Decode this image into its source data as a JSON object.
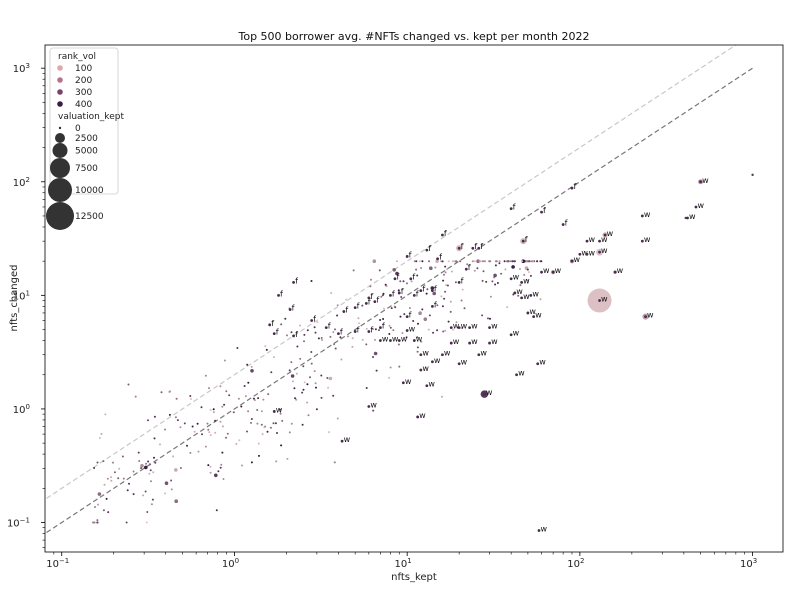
{
  "chart_data": {
    "type": "scatter",
    "title": "Top 500 borrower avg. #NFTs changed vs. kept per month 2022",
    "xlabel": "nfts_kept",
    "ylabel": "nfts_changed",
    "xscale": "log",
    "yscale": "log",
    "xlim": [
      0.08,
      1500
    ],
    "ylim": [
      0.055,
      1600
    ],
    "x_ticks": [
      {
        "value": 0.1,
        "base": "10",
        "exp": "−1"
      },
      {
        "value": 1,
        "base": "10",
        "exp": "0"
      },
      {
        "value": 10,
        "base": "10",
        "exp": "1"
      },
      {
        "value": 100,
        "base": "10",
        "exp": "2"
      },
      {
        "value": 1000,
        "base": "10",
        "exp": "3"
      }
    ],
    "y_ticks": [
      {
        "value": 0.1,
        "base": "10",
        "exp": "−1"
      },
      {
        "value": 1,
        "base": "10",
        "exp": "0"
      },
      {
        "value": 10,
        "base": "10",
        "exp": "1"
      },
      {
        "value": 100,
        "base": "10",
        "exp": "2"
      },
      {
        "value": 1000,
        "base": "10",
        "exp": "3"
      }
    ],
    "grid": false,
    "legend_position": "top-left",
    "legend": {
      "hue_title": "rank_vol",
      "hue_entries": [
        {
          "label": "100",
          "color": "#dca7ae"
        },
        {
          "label": "200",
          "color": "#b9728e"
        },
        {
          "label": "300",
          "color": "#7c3f6e"
        },
        {
          "label": "400",
          "color": "#3a1c47"
        }
      ],
      "size_title": "valuation_kept",
      "size_entries": [
        {
          "label": "0",
          "r": 1.2
        },
        {
          "label": "2500",
          "r": 5
        },
        {
          "label": "5000",
          "r": 7.5
        },
        {
          "label": "7500",
          "r": 10
        },
        {
          "label": "10000",
          "r": 12
        },
        {
          "label": "12500",
          "r": 14
        }
      ]
    },
    "reference_lines": [
      {
        "description": "y = x",
        "color": "#777777",
        "points": [
          [
            0.04,
            0.04
          ],
          [
            1000,
            1000
          ]
        ],
        "style": "dashed"
      },
      {
        "description": "y = 2x",
        "color": "#c8c8c8",
        "points": [
          [
            0.04,
            0.08
          ],
          [
            1000,
            2000
          ]
        ],
        "style": "dashed"
      }
    ],
    "labeled_points": [
      {
        "x": 2.2,
        "y": 13,
        "label": "f"
      },
      {
        "x": 1.8,
        "y": 10,
        "label": "f"
      },
      {
        "x": 2.1,
        "y": 7.5,
        "label": "f"
      },
      {
        "x": 1.6,
        "y": 5.5,
        "label": "f"
      },
      {
        "x": 1.7,
        "y": 4.6,
        "label": "f"
      },
      {
        "x": 2.2,
        "y": 4.4,
        "label": "f"
      },
      {
        "x": 2.8,
        "y": 6,
        "label": "f"
      },
      {
        "x": 3.4,
        "y": 5.2,
        "label": "f"
      },
      {
        "x": 4.3,
        "y": 7.2,
        "label": "f"
      },
      {
        "x": 5,
        "y": 7.8,
        "label": "f"
      },
      {
        "x": 5.8,
        "y": 8.5,
        "label": "f"
      },
      {
        "x": 6.5,
        "y": 8.8,
        "label": "f"
      },
      {
        "x": 8,
        "y": 10,
        "label": "f"
      },
      {
        "x": 9,
        "y": 10.5,
        "label": "f"
      },
      {
        "x": 8.5,
        "y": 14,
        "label": "f"
      },
      {
        "x": 10.5,
        "y": 14,
        "label": "f"
      },
      {
        "x": 11,
        "y": 10,
        "label": "f"
      },
      {
        "x": 12,
        "y": 11,
        "label": "f"
      },
      {
        "x": 10,
        "y": 22,
        "label": "f"
      },
      {
        "x": 13,
        "y": 25,
        "label": "f"
      },
      {
        "x": 16,
        "y": 34,
        "label": "f"
      },
      {
        "x": 15,
        "y": 21,
        "label": "f"
      },
      {
        "x": 20,
        "y": 26,
        "label": "f"
      },
      {
        "x": 24,
        "y": 26,
        "label": "f"
      },
      {
        "x": 22,
        "y": 17,
        "label": "f"
      },
      {
        "x": 20,
        "y": 13,
        "label": "f"
      },
      {
        "x": 14,
        "y": 8,
        "label": "f"
      },
      {
        "x": 14,
        "y": 11,
        "label": "f"
      },
      {
        "x": 10,
        "y": 6.5,
        "label": "f"
      },
      {
        "x": 7,
        "y": 5.2,
        "label": "f"
      },
      {
        "x": 6,
        "y": 4.8,
        "label": "f"
      },
      {
        "x": 5,
        "y": 4.8,
        "label": "f"
      },
      {
        "x": 4,
        "y": 4.6,
        "label": "f"
      },
      {
        "x": 40,
        "y": 58,
        "label": "f"
      },
      {
        "x": 60,
        "y": 54,
        "label": "f"
      },
      {
        "x": 80,
        "y": 42,
        "label": "f"
      },
      {
        "x": 90,
        "y": 88,
        "label": "f"
      },
      {
        "x": 47,
        "y": 30,
        "label": "f"
      },
      {
        "x": 26,
        "y": 26,
        "label": "f"
      },
      {
        "x": 6,
        "y": 9.5,
        "label": "f"
      },
      {
        "x": 500,
        "y": 100,
        "label": "w"
      },
      {
        "x": 470,
        "y": 60,
        "label": "w"
      },
      {
        "x": 420,
        "y": 48,
        "label": "w"
      },
      {
        "x": 230,
        "y": 50,
        "label": "w"
      },
      {
        "x": 230,
        "y": 30,
        "label": "w"
      },
      {
        "x": 140,
        "y": 34,
        "label": "w"
      },
      {
        "x": 130,
        "y": 30,
        "label": "w"
      },
      {
        "x": 110,
        "y": 30,
        "label": "w"
      },
      {
        "x": 130,
        "y": 24,
        "label": "w"
      },
      {
        "x": 100,
        "y": 23,
        "label": "w"
      },
      {
        "x": 110,
        "y": 23,
        "label": "w"
      },
      {
        "x": 90,
        "y": 20,
        "label": "w"
      },
      {
        "x": 70,
        "y": 16,
        "label": "w"
      },
      {
        "x": 60,
        "y": 16,
        "label": "w"
      },
      {
        "x": 160,
        "y": 16,
        "label": "w"
      },
      {
        "x": 130,
        "y": 9,
        "label": "w"
      },
      {
        "x": 240,
        "y": 6.5,
        "label": "w"
      },
      {
        "x": 40,
        "y": 14,
        "label": "w"
      },
      {
        "x": 46,
        "y": 13,
        "label": "w"
      },
      {
        "x": 42,
        "y": 10.5,
        "label": "w"
      },
      {
        "x": 46,
        "y": 9.5,
        "label": "w"
      },
      {
        "x": 52,
        "y": 10,
        "label": "w"
      },
      {
        "x": 50,
        "y": 7,
        "label": "w"
      },
      {
        "x": 54,
        "y": 6.5,
        "label": "w"
      },
      {
        "x": 30,
        "y": 5.2,
        "label": "w"
      },
      {
        "x": 23,
        "y": 5.2,
        "label": "w"
      },
      {
        "x": 20,
        "y": 5.2,
        "label": "w"
      },
      {
        "x": 18,
        "y": 5.2,
        "label": "w"
      },
      {
        "x": 40,
        "y": 4.5,
        "label": "w"
      },
      {
        "x": 23,
        "y": 3.8,
        "label": "w"
      },
      {
        "x": 18,
        "y": 3.8,
        "label": "w"
      },
      {
        "x": 30,
        "y": 3.8,
        "label": "w"
      },
      {
        "x": 26,
        "y": 3,
        "label": "w"
      },
      {
        "x": 16,
        "y": 3,
        "label": "w"
      },
      {
        "x": 20,
        "y": 2.5,
        "label": "w"
      },
      {
        "x": 14,
        "y": 2.6,
        "label": "w"
      },
      {
        "x": 12,
        "y": 2.2,
        "label": "w"
      },
      {
        "x": 12,
        "y": 3,
        "label": "w"
      },
      {
        "x": 9,
        "y": 4,
        "label": "w"
      },
      {
        "x": 10,
        "y": 4.9,
        "label": "w"
      },
      {
        "x": 8,
        "y": 4,
        "label": "w"
      },
      {
        "x": 7,
        "y": 4,
        "label": "w"
      },
      {
        "x": 11,
        "y": 4,
        "label": "w"
      },
      {
        "x": 9.5,
        "y": 1.7,
        "label": "w"
      },
      {
        "x": 13,
        "y": 1.6,
        "label": "w"
      },
      {
        "x": 28,
        "y": 1.35,
        "label": "w"
      },
      {
        "x": 43,
        "y": 2,
        "label": "w"
      },
      {
        "x": 57,
        "y": 2.5,
        "label": "w"
      },
      {
        "x": 6,
        "y": 1.05,
        "label": "w"
      },
      {
        "x": 11.5,
        "y": 0.85,
        "label": "w"
      },
      {
        "x": 1.7,
        "y": 0.95,
        "label": "w"
      },
      {
        "x": 4.2,
        "y": 0.52,
        "label": "w"
      },
      {
        "x": 58,
        "y": 0.085,
        "label": "w"
      }
    ],
    "highlight_points": [
      {
        "x": 130,
        "y": 9,
        "size": 6000,
        "rank_vol": 60
      },
      {
        "x": 28,
        "y": 1.35,
        "size": 600,
        "rank_vol": 450
      },
      {
        "x": 20,
        "y": 26,
        "size": 400,
        "rank_vol": 80
      },
      {
        "x": 47,
        "y": 30,
        "size": 400,
        "rank_vol": 80
      },
      {
        "x": 130,
        "y": 24,
        "size": 500,
        "rank_vol": 60
      },
      {
        "x": 140,
        "y": 34,
        "size": 300,
        "rank_vol": 100
      },
      {
        "x": 240,
        "y": 6.5,
        "size": 400,
        "rank_vol": 150
      },
      {
        "x": 500,
        "y": 100,
        "size": 250,
        "rank_vol": 200
      },
      {
        "x": 1000,
        "y": 115,
        "size": 60,
        "rank_vol": 450
      },
      {
        "x": 410,
        "y": 48,
        "size": 60,
        "rank_vol": 450
      },
      {
        "x": 70,
        "y": 16,
        "size": 200,
        "rank_vol": 150
      },
      {
        "x": 90,
        "y": 20,
        "size": 200,
        "rank_vol": 150
      },
      {
        "x": 160,
        "y": 16,
        "size": 150,
        "rank_vol": 100
      }
    ],
    "background_scatter": {
      "count": 430,
      "x_range": [
        0.15,
        60
      ],
      "y_range": [
        0.1,
        20
      ],
      "note": "Small unlabeled markers clustered along the diagonal, mostly below 10."
    }
  }
}
